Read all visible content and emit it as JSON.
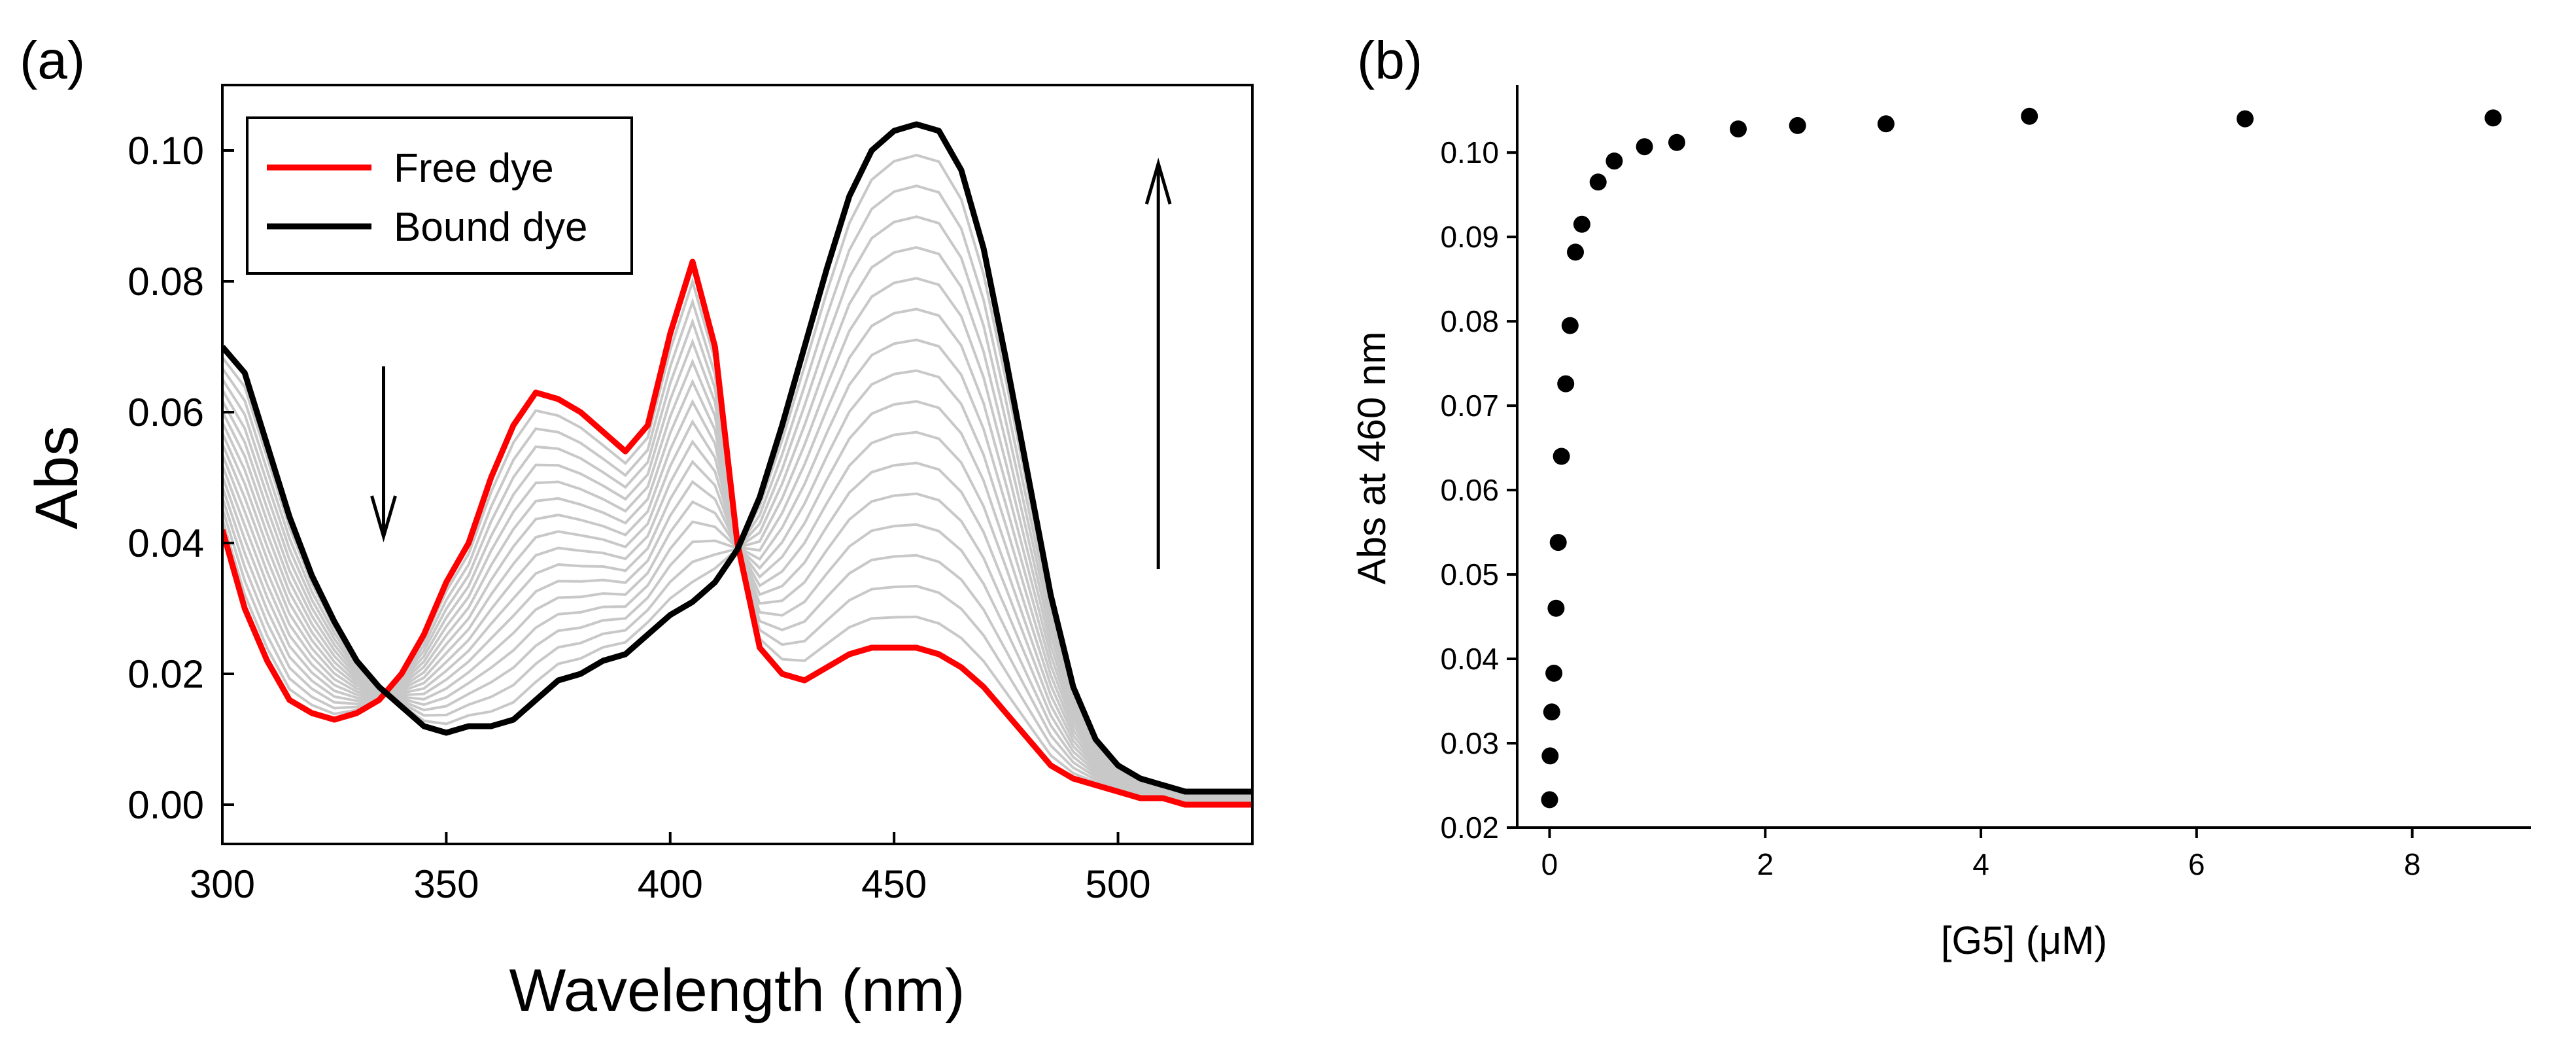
{
  "chart_data": [
    {
      "panel_label": "(a)",
      "type": "line",
      "xlabel": "Wavelength (nm)",
      "ylabel": "Abs",
      "xlim": [
        300,
        530
      ],
      "ylim": [
        -0.006,
        0.11
      ],
      "xticks": [
        300,
        350,
        400,
        450,
        500
      ],
      "xtick_labels": [
        "300",
        "350",
        "400",
        "450",
        "500"
      ],
      "yticks": [
        0.0,
        0.02,
        0.04,
        0.06,
        0.08,
        0.1
      ],
      "ytick_labels": [
        "0.00",
        "0.02",
        "0.04",
        "0.06",
        "0.08",
        "0.10"
      ],
      "legend_position": "top-left",
      "intermediate_curve_count": 16,
      "intermediate_color": "#c8c8c8",
      "x": [
        300,
        305,
        310,
        315,
        320,
        325,
        330,
        335,
        340,
        345,
        350,
        355,
        360,
        365,
        370,
        375,
        380,
        385,
        390,
        395,
        400,
        405,
        410,
        415,
        420,
        425,
        430,
        435,
        440,
        445,
        450,
        455,
        460,
        465,
        470,
        475,
        480,
        485,
        490,
        495,
        500,
        505,
        510,
        515,
        520,
        525,
        530
      ],
      "series": [
        {
          "name": "Free dye",
          "color": "#ff0000",
          "values": [
            0.042,
            0.03,
            0.022,
            0.016,
            0.014,
            0.013,
            0.014,
            0.016,
            0.02,
            0.026,
            0.034,
            0.04,
            0.05,
            0.058,
            0.063,
            0.062,
            0.06,
            0.057,
            0.054,
            0.058,
            0.072,
            0.083,
            0.07,
            0.04,
            0.024,
            0.02,
            0.019,
            0.021,
            0.023,
            0.024,
            0.024,
            0.024,
            0.023,
            0.021,
            0.018,
            0.014,
            0.01,
            0.006,
            0.004,
            0.003,
            0.002,
            0.001,
            0.001,
            0.0,
            0.0,
            0.0,
            0.0
          ]
        },
        {
          "name": "Bound dye",
          "color": "#000000",
          "values": [
            0.07,
            0.066,
            0.055,
            0.044,
            0.035,
            0.028,
            0.022,
            0.018,
            0.015,
            0.012,
            0.011,
            0.012,
            0.012,
            0.013,
            0.016,
            0.019,
            0.02,
            0.022,
            0.023,
            0.026,
            0.029,
            0.031,
            0.034,
            0.039,
            0.047,
            0.058,
            0.07,
            0.082,
            0.093,
            0.1,
            0.103,
            0.104,
            0.103,
            0.097,
            0.085,
            0.068,
            0.05,
            0.032,
            0.018,
            0.01,
            0.006,
            0.004,
            0.003,
            0.002,
            0.002,
            0.002,
            0.002
          ]
        }
      ],
      "arrows": [
        {
          "direction": "down",
          "x": 336,
          "from": 0.067,
          "to": 0.041
        },
        {
          "direction": "up",
          "x": 509,
          "from": 0.036,
          "to": 0.098
        }
      ]
    },
    {
      "panel_label": "(b)",
      "type": "scatter",
      "xlabel": "[G5] (μM)",
      "ylabel": "Abs at 460 nm",
      "xlim": [
        -0.3,
        9.1
      ],
      "ylim": [
        0.02,
        0.108
      ],
      "xticks": [
        0,
        2,
        4,
        6,
        8
      ],
      "xtick_labels": [
        "0",
        "2",
        "4",
        "6",
        "8"
      ],
      "yticks": [
        0.02,
        0.03,
        0.04,
        0.05,
        0.06,
        0.07,
        0.08,
        0.09,
        0.1
      ],
      "ytick_labels": [
        "0.02",
        "0.03",
        "0.04",
        "0.05",
        "0.06",
        "0.07",
        "0.08",
        "0.09",
        "0.10"
      ],
      "marker_color": "#000000",
      "x": [
        0.0,
        0.005,
        0.02,
        0.04,
        0.06,
        0.08,
        0.11,
        0.15,
        0.19,
        0.24,
        0.3,
        0.45,
        0.6,
        0.88,
        1.18,
        1.75,
        2.3,
        3.12,
        4.45,
        6.45,
        8.75
      ],
      "values": [
        0.0233,
        0.0285,
        0.0337,
        0.0383,
        0.046,
        0.0538,
        0.064,
        0.0726,
        0.0795,
        0.0882,
        0.0915,
        0.0965,
        0.099,
        0.1007,
        0.1012,
        0.1028,
        0.1032,
        0.1034,
        0.1043,
        0.104,
        0.1041
      ]
    }
  ]
}
